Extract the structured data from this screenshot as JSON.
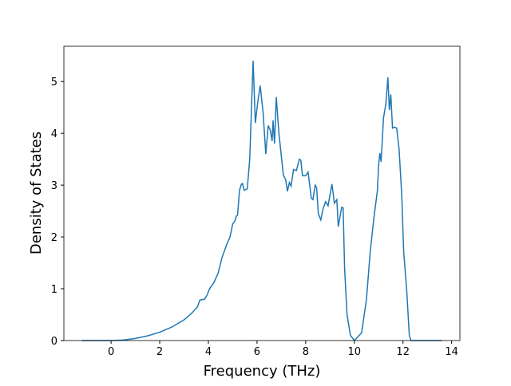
{
  "chart_data": {
    "type": "line",
    "xlabel": "Frequency (THz)",
    "ylabel": "Density of States",
    "x": [
      -1.2,
      0,
      0.5,
      1,
      1.5,
      2,
      2.5,
      3,
      3.3,
      3.55,
      3.65,
      3.85,
      3.95,
      4.05,
      4.23,
      4.4,
      4.56,
      4.75,
      4.89,
      5.0,
      5.08,
      5.15,
      5.2,
      5.28,
      5.36,
      5.4,
      5.47,
      5.6,
      5.7,
      5.84,
      5.93,
      6.03,
      6.13,
      6.25,
      6.36,
      6.46,
      6.55,
      6.62,
      6.66,
      6.72,
      6.79,
      6.9,
      7.08,
      7.18,
      7.25,
      7.33,
      7.4,
      7.5,
      7.62,
      7.74,
      7.8,
      7.87,
      8.0,
      8.1,
      8.23,
      8.3,
      8.39,
      8.45,
      8.52,
      8.62,
      8.72,
      8.82,
      8.92,
      9.08,
      9.18,
      9.28,
      9.34,
      9.48,
      9.54,
      9.6,
      9.7,
      9.84,
      10.0,
      10.1,
      10.3,
      10.5,
      10.65,
      10.8,
      10.95,
      11.0,
      11.05,
      11.1,
      11.2,
      11.3,
      11.38,
      11.44,
      11.5,
      11.57,
      11.65,
      11.74,
      11.84,
      11.95,
      12.03,
      12.15,
      12.26,
      12.33,
      13.6
    ],
    "values": [
      0,
      0,
      0.01,
      0.04,
      0.09,
      0.16,
      0.26,
      0.4,
      0.52,
      0.65,
      0.78,
      0.8,
      0.88,
      1.0,
      1.12,
      1.3,
      1.6,
      1.85,
      2.0,
      2.25,
      2.3,
      2.4,
      2.42,
      2.9,
      3.02,
      3.03,
      2.9,
      2.93,
      3.5,
      5.4,
      4.2,
      4.6,
      4.92,
      4.4,
      3.6,
      4.15,
      4.05,
      3.85,
      4.25,
      3.8,
      4.7,
      4.0,
      3.2,
      3.1,
      2.88,
      3.05,
      2.98,
      3.3,
      3.28,
      3.5,
      3.48,
      3.18,
      3.18,
      3.25,
      2.75,
      2.72,
      3.0,
      2.95,
      2.45,
      2.33,
      2.55,
      2.68,
      2.6,
      3.02,
      2.65,
      2.72,
      2.2,
      2.57,
      2.56,
      1.4,
      0.5,
      0.1,
      0,
      0.05,
      0.15,
      0.8,
      1.7,
      2.35,
      2.9,
      3.4,
      3.62,
      3.45,
      4.3,
      4.58,
      5.08,
      4.45,
      4.75,
      4.1,
      4.12,
      4.1,
      3.7,
      2.8,
      1.7,
      1.0,
      0.1,
      0,
      0
    ],
    "color": "#1f77b4",
    "xlim": [
      -1.94,
      14.34
    ],
    "xticks": [
      0,
      2,
      4,
      6,
      8,
      10,
      12,
      14
    ],
    "ylim": [
      0,
      5.68
    ],
    "yticks": [
      0,
      1,
      2,
      3,
      4,
      5
    ]
  }
}
